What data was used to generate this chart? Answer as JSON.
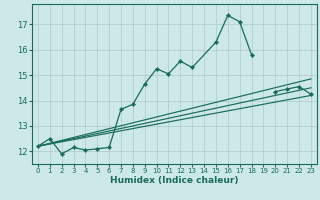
{
  "xlabel": "Humidex (Indice chaleur)",
  "bg_color": "#cce8e8",
  "grid_color": "#b0c8c8",
  "line_color": "#1a6b5a",
  "xlim": [
    -0.5,
    23.5
  ],
  "ylim": [
    11.5,
    17.8
  ],
  "yticks": [
    12,
    13,
    14,
    15,
    16,
    17
  ],
  "xticks": [
    0,
    1,
    2,
    3,
    4,
    5,
    6,
    7,
    8,
    9,
    10,
    11,
    12,
    13,
    14,
    15,
    16,
    17,
    18,
    19,
    20,
    21,
    22,
    23
  ],
  "series1_x": [
    0,
    1,
    2,
    3,
    4,
    5,
    6,
    7,
    8,
    9,
    10,
    11,
    12,
    13,
    15,
    16,
    17,
    18
  ],
  "series1_y": [
    12.2,
    12.5,
    11.9,
    12.15,
    12.05,
    12.1,
    12.15,
    13.65,
    13.85,
    14.65,
    15.25,
    15.05,
    15.55,
    15.3,
    16.3,
    17.35,
    17.1,
    15.8
  ],
  "series2_x": [
    20,
    21,
    22,
    23
  ],
  "series2_y": [
    14.35,
    14.45,
    14.55,
    14.25
  ],
  "line2_x": [
    0,
    23
  ],
  "line2_y": [
    12.2,
    14.2
  ],
  "line3_x": [
    0,
    23
  ],
  "line3_y": [
    12.2,
    14.5
  ],
  "line4_x": [
    0,
    23
  ],
  "line4_y": [
    12.2,
    14.85
  ]
}
